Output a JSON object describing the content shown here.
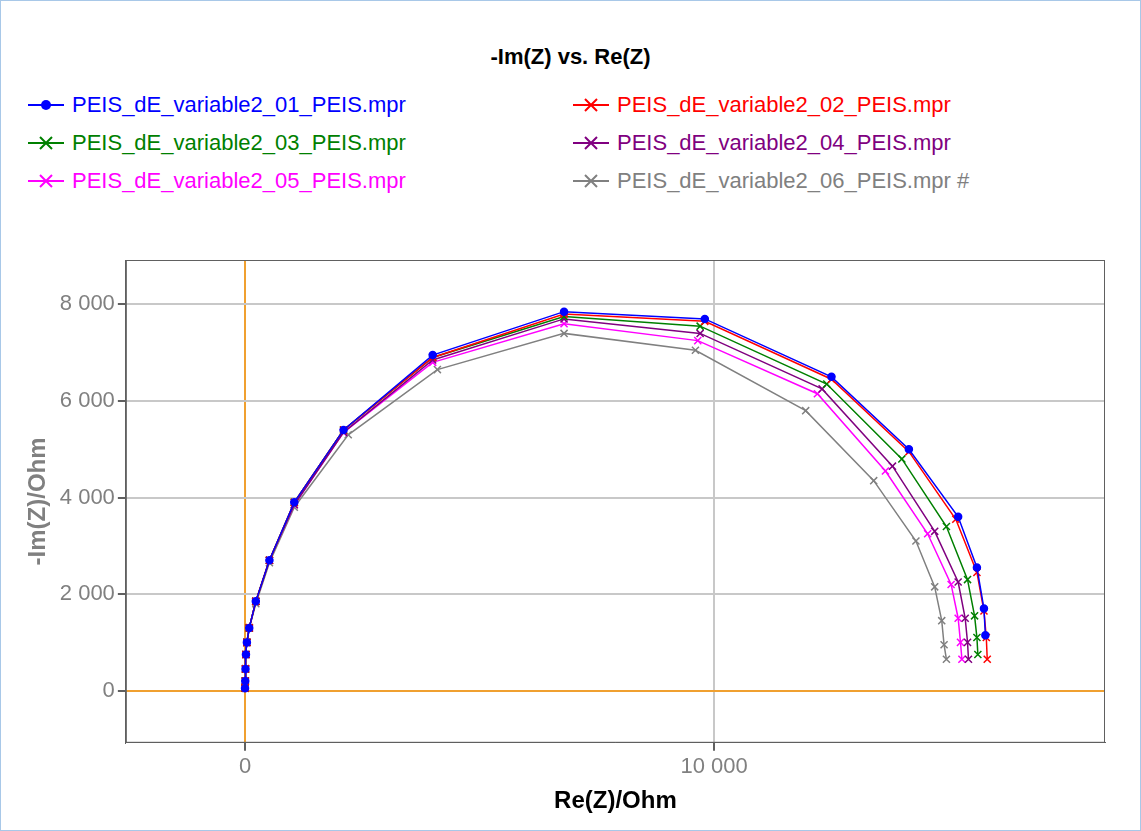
{
  "chart_data": {
    "type": "scatter",
    "title": "-Im(Z) vs. Re(Z)",
    "x_label": "Re(Z)/Ohm",
    "y_label": "-Im(Z)/Ohm",
    "xlim": [
      -2540,
      18330
    ],
    "xticks": [
      0,
      {
        "value": 10000,
        "label": "10 000"
      }
    ],
    "ylim": [
      -1080,
      8920
    ],
    "yticks": [
      0,
      {
        "value": 2000,
        "label": "2 000"
      },
      {
        "value": 4000,
        "label": "4 000"
      },
      {
        "value": 6000,
        "label": "6 000"
      },
      {
        "value": 8000,
        "label": "8 000"
      }
    ],
    "grid": true,
    "legend": "top",
    "line_style": "solid",
    "series": [
      {
        "name": "PEIS_dE_variable2_01_PEIS.mpr",
        "color": "#0000ff",
        "marker": "circle",
        "x": [
          0,
          5,
          10,
          20,
          40,
          90,
          230,
          520,
          1050,
          2100,
          4000,
          6800,
          9800,
          12500,
          14150,
          15200,
          15600,
          15750,
          15780
        ],
        "values": [
          50,
          200,
          450,
          750,
          1000,
          1300,
          1850,
          2700,
          3900,
          5400,
          6950,
          7850,
          7700,
          6500,
          5000,
          3600,
          2550,
          1700,
          1150
        ]
      },
      {
        "name": "PEIS_dE_variable2_02_PEIS.mpr",
        "color": "#ff0000",
        "marker": "cross",
        "x": [
          0,
          5,
          10,
          20,
          40,
          90,
          230,
          520,
          1050,
          2100,
          4000,
          6800,
          9800,
          12500,
          14150,
          15150,
          15600,
          15750,
          15800,
          15820
        ],
        "values": [
          50,
          200,
          450,
          750,
          1000,
          1300,
          1850,
          2700,
          3900,
          5400,
          6900,
          7800,
          7650,
          6450,
          4950,
          3550,
          2450,
          1650,
          1100,
          650
        ]
      },
      {
        "name": "PEIS_dE_variable2_03_PEIS.mpr",
        "color": "#008000",
        "marker": "cross",
        "x": [
          0,
          5,
          10,
          20,
          40,
          90,
          230,
          520,
          1050,
          2100,
          4000,
          6800,
          9700,
          12400,
          14000,
          14950,
          15400,
          15550,
          15600,
          15620
        ],
        "values": [
          50,
          200,
          450,
          750,
          1000,
          1300,
          1850,
          2700,
          3900,
          5400,
          6900,
          7750,
          7550,
          6350,
          4800,
          3400,
          2300,
          1550,
          1100,
          750
        ]
      },
      {
        "name": "PEIS_dE_variable2_04_PEIS.mpr",
        "color": "#800080",
        "marker": "cross",
        "x": [
          0,
          5,
          10,
          20,
          40,
          90,
          230,
          520,
          1050,
          2100,
          4000,
          6800,
          9700,
          12300,
          13800,
          14700,
          15200,
          15350,
          15400,
          15420
        ],
        "values": [
          50,
          200,
          450,
          750,
          1000,
          1300,
          1850,
          2700,
          3850,
          5350,
          6850,
          7700,
          7400,
          6250,
          4650,
          3300,
          2250,
          1500,
          1000,
          650
        ]
      },
      {
        "name": "PEIS_dE_variable2_05_PEIS.mpr",
        "color": "#ff00ff",
        "marker": "cross",
        "x": [
          0,
          5,
          10,
          20,
          40,
          90,
          230,
          520,
          1050,
          2100,
          4000,
          6800,
          9650,
          12200,
          13650,
          14550,
          15050,
          15200,
          15250,
          15280
        ],
        "values": [
          50,
          200,
          450,
          750,
          1000,
          1300,
          1850,
          2700,
          3850,
          5350,
          6800,
          7600,
          7250,
          6150,
          4550,
          3250,
          2200,
          1500,
          1000,
          650
        ]
      },
      {
        "name": "PEIS_dE_variable2_06_PEIS.mpr #",
        "color": "#808080",
        "marker": "cross",
        "x": [
          0,
          5,
          10,
          20,
          40,
          90,
          230,
          520,
          1050,
          2200,
          4100,
          6800,
          9600,
          11950,
          13400,
          14300,
          14700,
          14850,
          14900,
          14950
        ],
        "values": [
          50,
          200,
          450,
          750,
          1000,
          1300,
          1800,
          2650,
          3800,
          5300,
          6650,
          7400,
          7050,
          5800,
          4350,
          3100,
          2150,
          1450,
          950,
          650
        ]
      }
    ]
  }
}
